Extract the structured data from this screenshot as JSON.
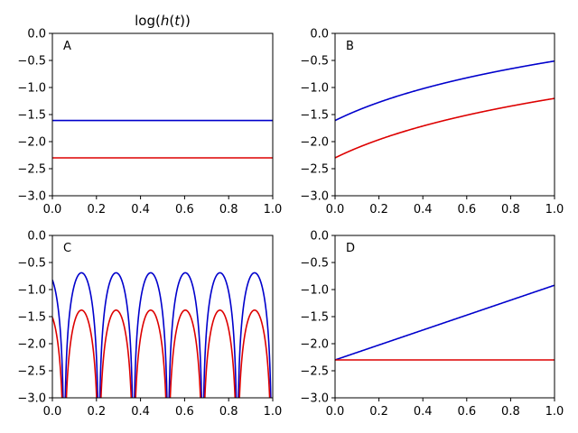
{
  "chart_data": {
    "title_prefix": "log(",
    "title_var": "h",
    "title_suffix": "(",
    "title_var2": "t",
    "title_end": "))",
    "figure_title": "log(h(t))",
    "colors": {
      "series_a": "#0000cc",
      "series_b": "#dd0000",
      "axes": "#000000"
    },
    "panels": [
      {
        "label": "A",
        "type": "line",
        "xlim": [
          0,
          1
        ],
        "ylim": [
          -3,
          0
        ],
        "x_ticks": [
          "0.0",
          "0.2",
          "0.4",
          "0.6",
          "0.8",
          "1.0"
        ],
        "y_ticks": [
          "0.0",
          "−0.5",
          "−1.0",
          "−1.5",
          "−2.0",
          "−2.5",
          "−3.0"
        ],
        "series": [
          {
            "name": "blue",
            "formula": "constant",
            "params": {
              "c": -1.61
            }
          },
          {
            "name": "red",
            "formula": "constant",
            "params": {
              "c": -2.3
            }
          }
        ]
      },
      {
        "label": "B",
        "type": "line",
        "xlim": [
          0,
          1
        ],
        "ylim": [
          -3,
          0
        ],
        "x_ticks": [
          "0.0",
          "0.2",
          "0.4",
          "0.6",
          "0.8",
          "1.0"
        ],
        "y_ticks": [
          "0.0",
          "−0.5",
          "−1.0",
          "−1.5",
          "−2.0",
          "−2.5",
          "−3.0"
        ],
        "series": [
          {
            "name": "blue",
            "formula": "log_growth",
            "params": {
              "c": -1.61
            }
          },
          {
            "name": "red",
            "formula": "log_growth",
            "params": {
              "c": -2.3
            }
          }
        ]
      },
      {
        "label": "C",
        "type": "line",
        "xlim": [
          0,
          1
        ],
        "ylim": [
          -3,
          0
        ],
        "x_ticks": [
          "0.0",
          "0.2",
          "0.4",
          "0.6",
          "0.8",
          "1.0"
        ],
        "y_ticks": [
          "0.0",
          "−0.5",
          "−1.0",
          "−1.5",
          "−2.0",
          "−2.5",
          "−3.0"
        ],
        "series": [
          {
            "name": "blue",
            "formula": "log_abs_cos",
            "params": {
              "c": -0.69,
              "freq": 20,
              "phase": 0.5
            }
          },
          {
            "name": "red",
            "formula": "log_abs_cos",
            "params": {
              "c": -1.38,
              "freq": 20,
              "phase": 0.5
            }
          }
        ]
      },
      {
        "label": "D",
        "type": "line",
        "xlim": [
          0,
          1
        ],
        "ylim": [
          -3,
          0
        ],
        "x_ticks": [
          "0.0",
          "0.2",
          "0.4",
          "0.6",
          "0.8",
          "1.0"
        ],
        "y_ticks": [
          "0.0",
          "−0.5",
          "−1.0",
          "−1.5",
          "−2.0",
          "−2.5",
          "−3.0"
        ],
        "series": [
          {
            "name": "blue",
            "formula": "linear",
            "params": {
              "y0": -2.3,
              "y1": -0.92
            }
          },
          {
            "name": "red",
            "formula": "constant",
            "params": {
              "c": -2.3
            }
          }
        ]
      }
    ]
  }
}
